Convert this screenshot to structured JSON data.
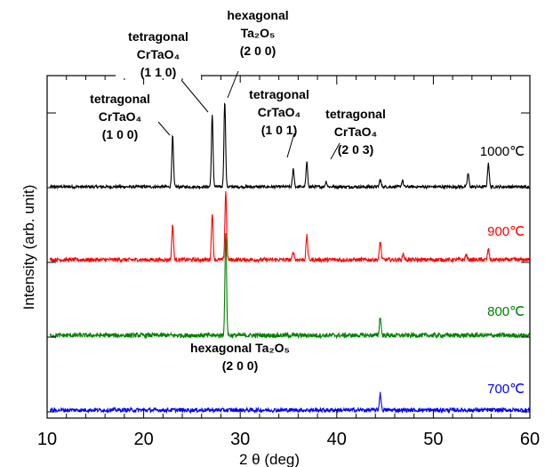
{
  "chart_data": {
    "type": "line",
    "xlabel": "2 θ (deg)",
    "ylabel": "Intensity (arb. unit)",
    "xlim": [
      10,
      60
    ],
    "x_ticks": [
      10,
      20,
      30,
      40,
      50,
      60
    ],
    "y_scale": "arbitrary, stacked traces with vertical offsets",
    "grid": false,
    "series": [
      {
        "name": "1000℃",
        "color": "#000000",
        "peaks": [
          {
            "x": 23.0,
            "y": 57
          },
          {
            "x": 27.1,
            "y": 80
          },
          {
            "x": 28.4,
            "y": 97
          },
          {
            "x": 35.5,
            "y": 20
          },
          {
            "x": 36.9,
            "y": 27
          },
          {
            "x": 38.9,
            "y": 6
          },
          {
            "x": 44.5,
            "y": 8
          },
          {
            "x": 46.8,
            "y": 7
          },
          {
            "x": 53.6,
            "y": 15
          },
          {
            "x": 55.7,
            "y": 27
          }
        ]
      },
      {
        "name": "900℃",
        "color": "#ff0000",
        "peaks": [
          {
            "x": 23.0,
            "y": 40
          },
          {
            "x": 27.1,
            "y": 53
          },
          {
            "x": 28.5,
            "y": 77
          },
          {
            "x": 35.5,
            "y": 9
          },
          {
            "x": 36.9,
            "y": 27
          },
          {
            "x": 44.5,
            "y": 21
          },
          {
            "x": 46.9,
            "y": 7
          },
          {
            "x": 53.4,
            "y": 6
          },
          {
            "x": 55.7,
            "y": 12
          }
        ]
      },
      {
        "name": "800℃",
        "color": "#008000",
        "peaks": [
          {
            "x": 28.5,
            "y": 115
          },
          {
            "x": 44.5,
            "y": 21
          }
        ]
      },
      {
        "name": "700℃",
        "color": "#0000ff",
        "peaks": [
          {
            "x": 44.5,
            "y": 19
          }
        ]
      }
    ],
    "annotations": [
      {
        "lines": [
          "tetragonal",
          "CrTaO₄",
          "(1 0 0)"
        ]
      },
      {
        "lines": [
          "tetragonal",
          "CrTaO₄",
          "(1 1 0)"
        ]
      },
      {
        "lines": [
          "hexagonal",
          "Ta₂O₅",
          "(2 0 0)"
        ]
      },
      {
        "lines": [
          "tetragonal",
          "CrTaO₄",
          "(1 0 1)"
        ]
      },
      {
        "lines": [
          "tetragonal",
          "CrTaO₄",
          "(2 0 3)"
        ]
      },
      {
        "lines": [
          "hexagonal Ta₂O₅",
          "(2 0 0)"
        ]
      }
    ]
  }
}
